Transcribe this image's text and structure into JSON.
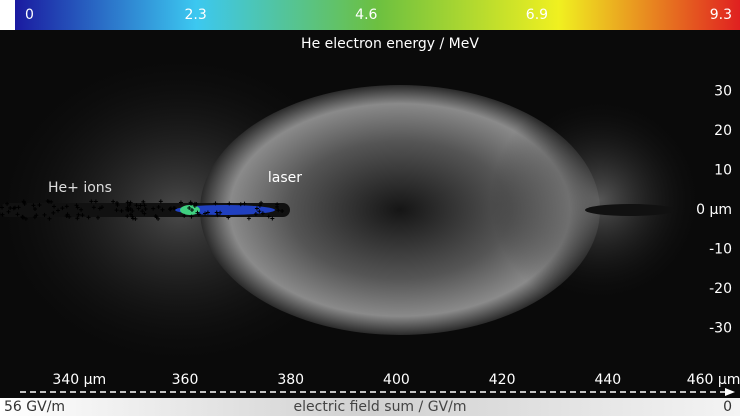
{
  "chart_data": {
    "type": "field",
    "title": "He electron energy / MeV",
    "colorbar": {
      "ticks": [
        0,
        2.3,
        4.6,
        6.9,
        9.3
      ],
      "lim": [
        0,
        9.3
      ],
      "colors": [
        "#1a1aa0",
        "#3cc8f0",
        "#6cc040",
        "#f0f020",
        "#e02020"
      ]
    },
    "field_bar": {
      "label": "electric field sum / GV/m",
      "ticks": [
        {
          "value": 56,
          "label": "56 GV/m"
        },
        0
      ],
      "lim": [
        56,
        0
      ]
    },
    "annotations": [
      "laser",
      "He+ ions"
    ],
    "xlim": [
      325,
      465
    ],
    "xticks": [
      {
        "value": 340,
        "label": "340 μm"
      },
      360,
      380,
      400,
      420,
      440,
      {
        "value": 460,
        "label": "460 μm"
      }
    ],
    "ylim": [
      -40,
      45
    ],
    "yticks": [
      30,
      20,
      10,
      {
        "value": 0,
        "label": "0  μm"
      },
      -10,
      -20,
      -30
    ]
  }
}
